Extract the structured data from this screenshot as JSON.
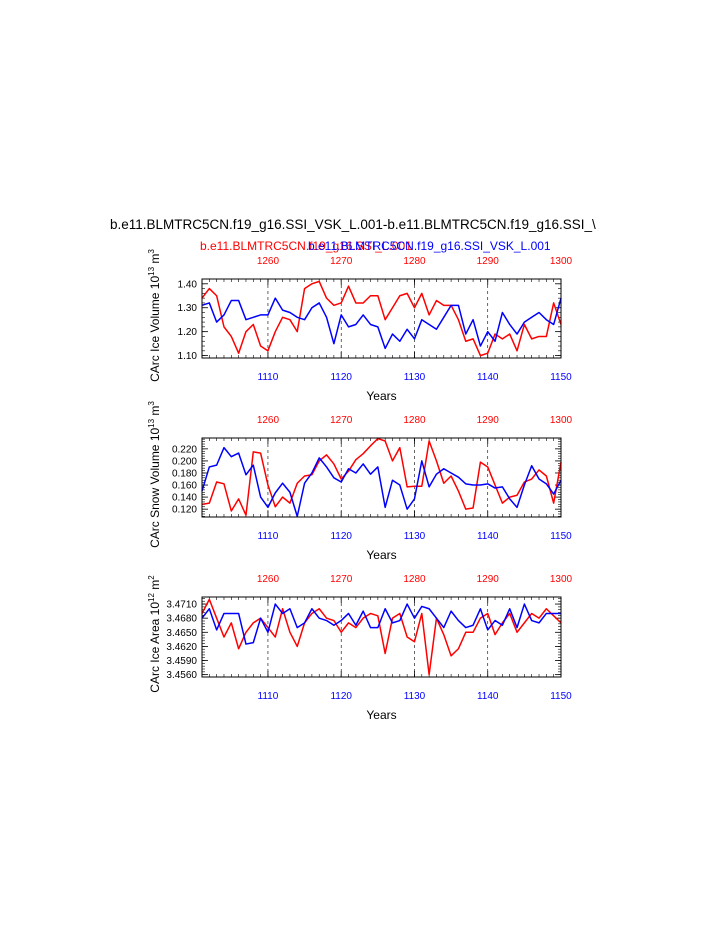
{
  "header": {
    "title": "b.e11.BLMTRC5CN.f19_g16.SSI_VSK_L.001-b.e11.BLMTRC5CN.f19_g16.SSI_\\",
    "legend_red": "b.e11.BLMTRC5CN.f19_g16.SSI_L.001",
    "legend_blue": "b.e11.BLMTRC5CN.f19_g16.SSI_VSK_L.001"
  },
  "colors": {
    "red": "#ff0000",
    "blue": "#0000ff",
    "axis": "#000000"
  },
  "chart_data": [
    {
      "type": "line",
      "ylabel": "CArc Ice Volume 10",
      "ylabel_exp": "13",
      "ylabel_unit": " m",
      "ylabel_unit_exp": "3",
      "xlabel": "Years",
      "bottom_axis": {
        "range": [
          1101,
          1150
        ],
        "ticks": [
          "1110",
          "1120",
          "1130",
          "1140",
          "1150"
        ]
      },
      "top_axis": {
        "range": [
          1251,
          1300
        ],
        "ticks": [
          "1260",
          "1270",
          "1280",
          "1290",
          "1300"
        ]
      },
      "yrange": [
        1.09,
        1.42
      ],
      "yticks": [
        "1.10",
        "1.20",
        "1.30",
        "1.40"
      ],
      "ytick_values": [
        1.1,
        1.2,
        1.3,
        1.4
      ],
      "grid": "vertical dashed at 1110, 1120, 1130, 1140",
      "series": [
        {
          "name": "b.e11.BLMTRC5CN.f19_g16.SSI_L.001",
          "color": "red",
          "x_start": 1251,
          "values": [
            1.34,
            1.38,
            1.35,
            1.22,
            1.18,
            1.11,
            1.2,
            1.23,
            1.14,
            1.12,
            1.2,
            1.26,
            1.25,
            1.2,
            1.38,
            1.4,
            1.41,
            1.34,
            1.31,
            1.32,
            1.39,
            1.32,
            1.32,
            1.35,
            1.35,
            1.25,
            1.3,
            1.35,
            1.36,
            1.3,
            1.36,
            1.27,
            1.33,
            1.31,
            1.31,
            1.25,
            1.16,
            1.17,
            1.1,
            1.11,
            1.19,
            1.17,
            1.19,
            1.12,
            1.23,
            1.17,
            1.18,
            1.18,
            1.32,
            1.23
          ]
        },
        {
          "name": "b.e11.BLMTRC5CN.f19_g16.SSI_VSK_L.001",
          "color": "blue",
          "x_start": 1101,
          "values": [
            1.31,
            1.32,
            1.24,
            1.27,
            1.33,
            1.33,
            1.25,
            1.26,
            1.27,
            1.27,
            1.34,
            1.29,
            1.28,
            1.26,
            1.25,
            1.3,
            1.32,
            1.26,
            1.15,
            1.27,
            1.22,
            1.23,
            1.27,
            1.23,
            1.22,
            1.13,
            1.19,
            1.16,
            1.21,
            1.17,
            1.25,
            1.23,
            1.21,
            1.26,
            1.31,
            1.31,
            1.19,
            1.25,
            1.14,
            1.2,
            1.16,
            1.28,
            1.23,
            1.19,
            1.24,
            1.26,
            1.28,
            1.25,
            1.23,
            1.34
          ]
        }
      ]
    },
    {
      "type": "line",
      "ylabel": "CArc Snow Volume 10",
      "ylabel_exp": "13",
      "ylabel_unit": " m",
      "ylabel_unit_exp": "3",
      "xlabel": "Years",
      "bottom_axis": {
        "range": [
          1101,
          1150
        ],
        "ticks": [
          "1110",
          "1120",
          "1130",
          "1140",
          "1150"
        ]
      },
      "top_axis": {
        "range": [
          1251,
          1300
        ],
        "ticks": [
          "1260",
          "1270",
          "1280",
          "1290",
          "1300"
        ]
      },
      "yrange": [
        0.107,
        0.238
      ],
      "yticks": [
        "0.120",
        "0.140",
        "0.160",
        "0.180",
        "0.200",
        "0.220"
      ],
      "ytick_values": [
        0.12,
        0.14,
        0.16,
        0.18,
        0.2,
        0.22
      ],
      "grid": "vertical dashed at 1110, 1120, 1130, 1140",
      "series": [
        {
          "name": "b.e11.BLMTRC5CN.f19_g16.SSI_L.001",
          "color": "red",
          "x_start": 1251,
          "values": [
            0.128,
            0.13,
            0.165,
            0.162,
            0.117,
            0.137,
            0.11,
            0.215,
            0.213,
            0.16,
            0.124,
            0.14,
            0.13,
            0.163,
            0.175,
            0.177,
            0.2,
            0.21,
            0.195,
            0.17,
            0.183,
            0.202,
            0.212,
            0.225,
            0.237,
            0.233,
            0.2,
            0.222,
            0.157,
            0.158,
            0.158,
            0.233,
            0.2,
            0.163,
            0.175,
            0.15,
            0.12,
            0.122,
            0.198,
            0.19,
            0.16,
            0.13,
            0.14,
            0.143,
            0.165,
            0.17,
            0.185,
            0.175,
            0.13,
            0.198
          ]
        },
        {
          "name": "b.e11.BLMTRC5CN.f19_g16.SSI_VSK_L.001",
          "color": "blue",
          "x_start": 1101,
          "values": [
            0.15,
            0.19,
            0.193,
            0.222,
            0.207,
            0.213,
            0.177,
            0.193,
            0.14,
            0.123,
            0.147,
            0.163,
            0.148,
            0.108,
            0.163,
            0.18,
            0.205,
            0.19,
            0.172,
            0.165,
            0.187,
            0.18,
            0.195,
            0.178,
            0.19,
            0.123,
            0.168,
            0.16,
            0.12,
            0.137,
            0.2,
            0.157,
            0.178,
            0.187,
            0.18,
            0.173,
            0.162,
            0.16,
            0.16,
            0.162,
            0.155,
            0.157,
            0.137,
            0.123,
            0.16,
            0.192,
            0.17,
            0.162,
            0.145,
            0.168
          ]
        }
      ]
    },
    {
      "type": "line",
      "ylabel": "CArc Ice Area 10",
      "ylabel_exp": "12",
      "ylabel_unit": " m",
      "ylabel_unit_exp": "2",
      "xlabel": "Years",
      "bottom_axis": {
        "range": [
          1101,
          1150
        ],
        "ticks": [
          "1110",
          "1120",
          "1130",
          "1140",
          "1150"
        ]
      },
      "top_axis": {
        "range": [
          1251,
          1300
        ],
        "ticks": [
          "1260",
          "1270",
          "1280",
          "1290",
          "1300"
        ]
      },
      "yrange": [
        3.4555,
        3.4725
      ],
      "yticks": [
        "3.4560",
        "3.4590",
        "3.4620",
        "3.4650",
        "3.4680",
        "3.4710"
      ],
      "ytick_values": [
        3.456,
        3.459,
        3.462,
        3.465,
        3.468,
        3.471
      ],
      "grid": "vertical dashed at 1110, 1120, 1130, 1140",
      "series": [
        {
          "name": "b.e11.BLMTRC5CN.f19_g16.SSI_L.001",
          "color": "red",
          "x_start": 1251,
          "values": [
            3.469,
            3.472,
            3.468,
            3.464,
            3.467,
            3.4615,
            3.465,
            3.467,
            3.468,
            3.466,
            3.464,
            3.47,
            3.465,
            3.462,
            3.467,
            3.469,
            3.47,
            3.468,
            3.4675,
            3.465,
            3.467,
            3.466,
            3.468,
            3.469,
            3.4685,
            3.4605,
            3.468,
            3.469,
            3.464,
            3.463,
            3.469,
            3.456,
            3.468,
            3.4645,
            3.46,
            3.4615,
            3.465,
            3.465,
            3.468,
            3.469,
            3.4645,
            3.467,
            3.469,
            3.465,
            3.467,
            3.469,
            3.468,
            3.47,
            3.4685,
            3.467
          ]
        },
        {
          "name": "b.e11.BLMTRC5CN.f19_g16.SSI_VSK_L.001",
          "color": "blue",
          "x_start": 1101,
          "values": [
            3.468,
            3.47,
            3.4655,
            3.469,
            3.469,
            3.469,
            3.4625,
            3.4628,
            3.468,
            3.465,
            3.471,
            3.469,
            3.47,
            3.466,
            3.467,
            3.47,
            3.468,
            3.4675,
            3.4665,
            3.4675,
            3.469,
            3.4665,
            3.4695,
            3.466,
            3.466,
            3.47,
            3.467,
            3.4675,
            3.471,
            3.468,
            3.4705,
            3.47,
            3.468,
            3.466,
            3.4695,
            3.4675,
            3.466,
            3.4665,
            3.47,
            3.4655,
            3.4675,
            3.4665,
            3.47,
            3.466,
            3.471,
            3.4675,
            3.467,
            3.469,
            3.469,
            3.469
          ]
        }
      ]
    }
  ]
}
